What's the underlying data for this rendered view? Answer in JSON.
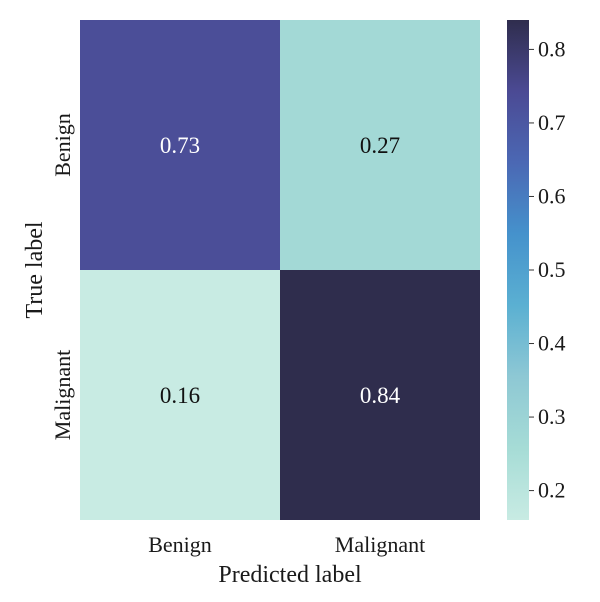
{
  "chart_data": {
    "type": "heatmap",
    "title": "",
    "xlabel": "Predicted label",
    "ylabel": "True label",
    "x_categories": [
      "Benign",
      "Malignant"
    ],
    "y_categories": [
      "Benign",
      "Malignant"
    ],
    "values": [
      [
        0.73,
        0.27
      ],
      [
        0.16,
        0.84
      ]
    ],
    "value_labels": [
      [
        "0.73",
        "0.27"
      ],
      [
        "0.16",
        "0.84"
      ]
    ],
    "colorbar": {
      "range": [
        0.16,
        0.84
      ],
      "ticks": [
        "0.2",
        "0.3",
        "0.4",
        "0.5",
        "0.6",
        "0.7",
        "0.8"
      ],
      "colormap": [
        "#c8ebe3",
        "#a6dcd6",
        "#8ec8d4",
        "#5bb0d2",
        "#4592cc",
        "#4b68b4",
        "#4b4a94",
        "#2f2d4d"
      ]
    },
    "text_colors": {
      "dark": "#111111",
      "light": "#ffffff"
    }
  }
}
